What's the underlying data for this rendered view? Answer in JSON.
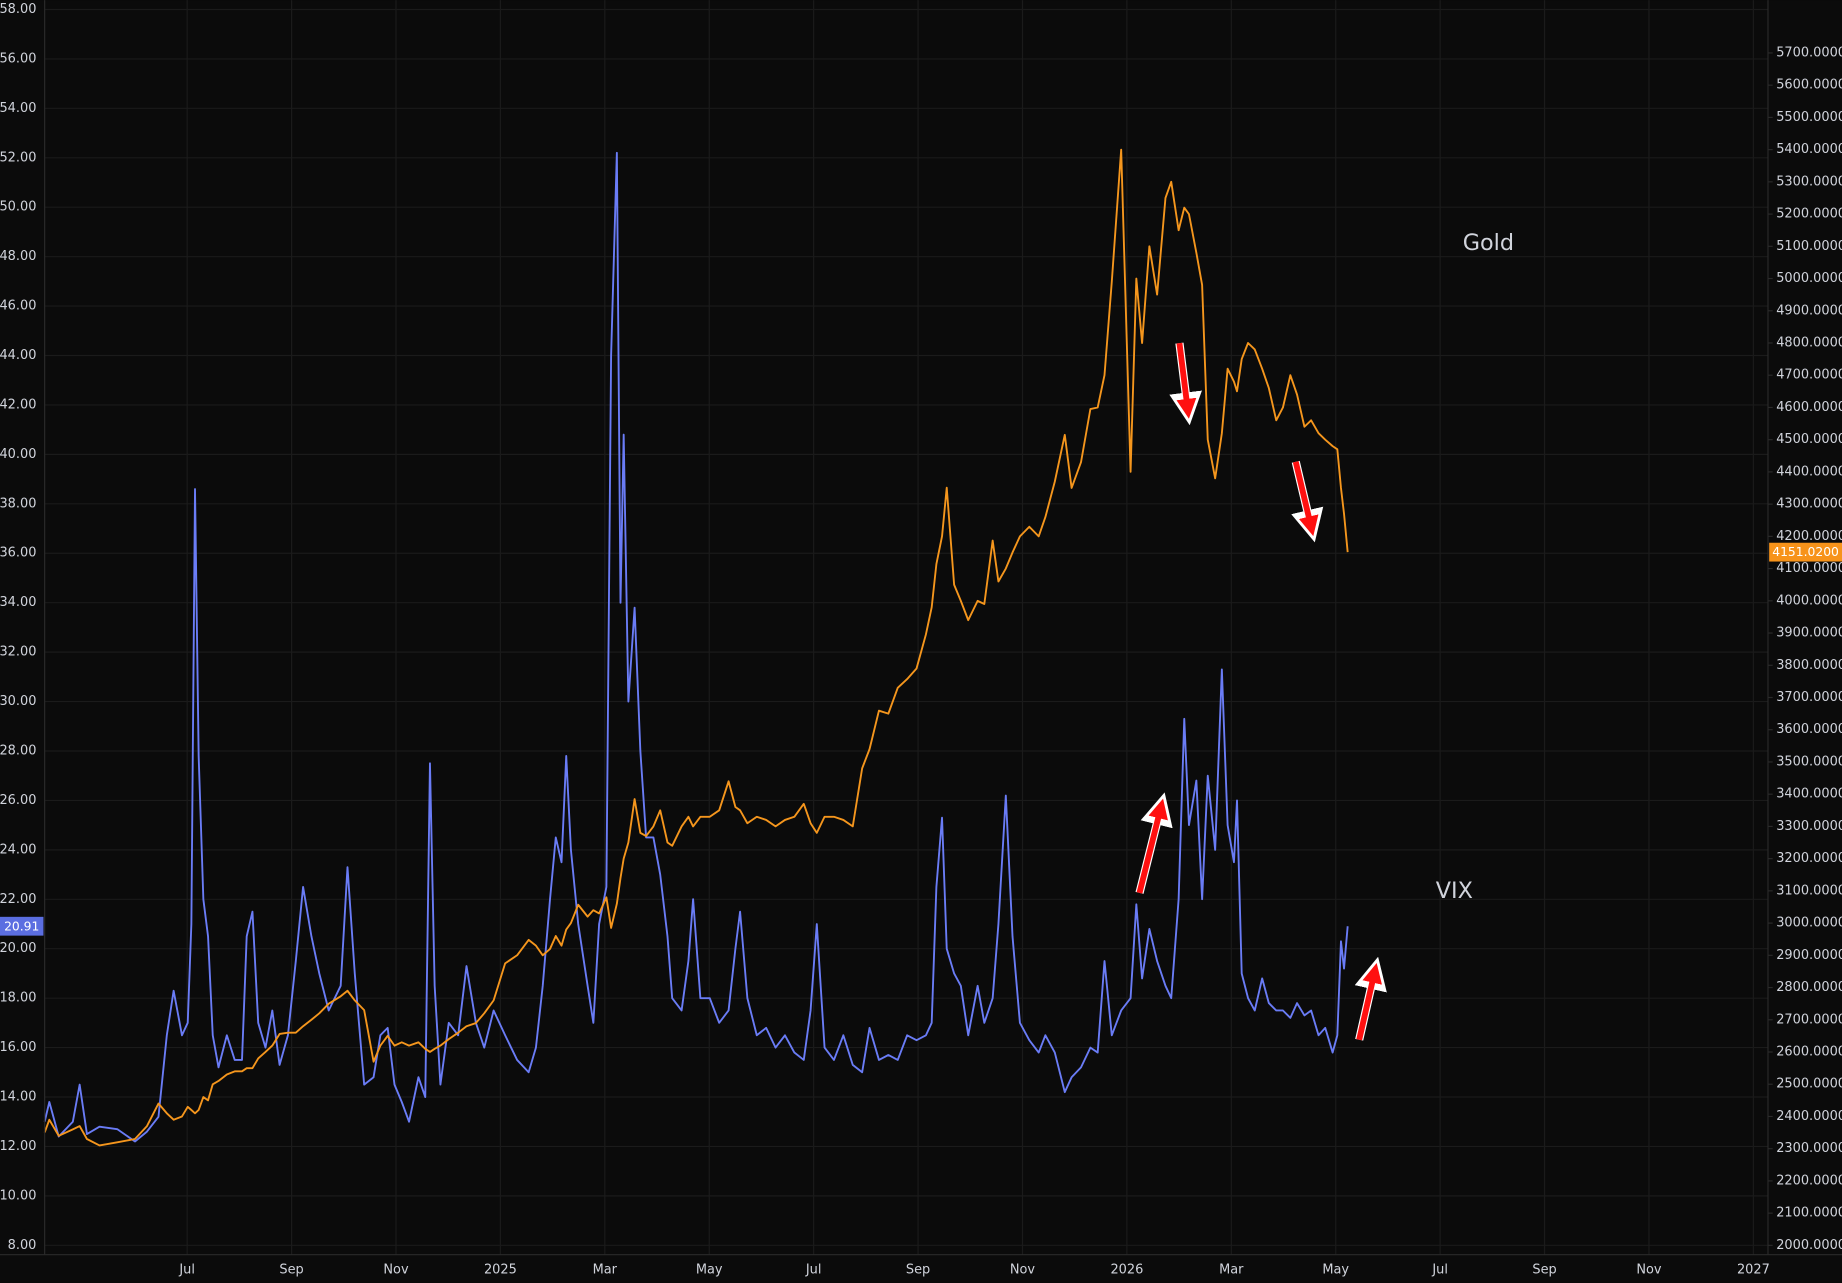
{
  "chart_data": {
    "type": "line",
    "annotations": [
      "Gold",
      "VIX"
    ],
    "x": [
      4.27,
      4.36,
      4.54,
      4.81,
      4.94,
      5.08,
      5.32,
      5.66,
      6.0,
      6.23,
      6.45,
      6.61,
      6.74,
      6.9,
      7.01,
      7.08,
      7.15,
      7.22,
      7.31,
      7.4,
      7.49,
      7.6,
      7.76,
      7.91,
      8.05,
      8.14,
      8.25,
      8.36,
      8.5,
      8.63,
      8.77,
      8.93,
      9.08,
      9.22,
      9.38,
      9.53,
      9.71,
      9.94,
      10.07,
      10.21,
      10.39,
      10.57,
      10.7,
      10.84,
      10.97,
      11.11,
      11.25,
      11.43,
      11.56,
      11.65,
      11.74,
      11.85,
      12.01,
      12.19,
      12.35,
      12.53,
      12.69,
      12.87,
      13.09,
      13.32,
      13.54,
      13.68,
      13.81,
      13.95,
      14.06,
      14.17,
      14.26,
      14.35,
      14.49,
      14.67,
      14.78,
      14.89,
      15.03,
      15.12,
      15.23,
      15.3,
      15.36,
      15.45,
      15.57,
      15.68,
      15.79,
      15.93,
      16.06,
      16.2,
      16.29,
      16.47,
      16.6,
      16.69,
      16.83,
      17.01,
      17.19,
      17.37,
      17.5,
      17.59,
      17.73,
      17.91,
      18.09,
      18.27,
      18.45,
      18.63,
      18.81,
      18.94,
      19.06,
      19.21,
      19.39,
      19.57,
      19.75,
      19.93,
      20.07,
      20.25,
      20.43,
      20.61,
      20.79,
      20.97,
      21.15,
      21.26,
      21.35,
      21.46,
      21.55,
      21.69,
      21.82,
      21.96,
      22.14,
      22.27,
      22.43,
      22.54,
      22.68,
      22.81,
      22.95,
      23.13,
      23.31,
      23.44,
      23.62,
      23.81,
      23.94,
      24.12,
      24.3,
      24.44,
      24.57,
      24.71,
      24.89,
      25.07,
      25.18,
      25.29,
      25.43,
      25.58,
      25.74,
      25.85,
      25.99,
      26.1,
      26.19,
      26.33,
      26.44,
      26.55,
      26.69,
      26.82,
      26.93,
      27.05,
      27.11,
      27.2,
      27.32,
      27.45,
      27.59,
      27.72,
      27.86,
      27.99,
      28.13,
      28.26,
      28.4,
      28.53,
      28.67,
      28.8,
      28.94,
      29.03,
      29.1,
      29.16,
      29.23
    ],
    "series": [
      {
        "name": "VIX",
        "color": "#6a7cf6",
        "axis": "y",
        "price_label": "20.91",
        "label_color": "#5b6ee1",
        "values": [
          13,
          13.8,
          12.4,
          13,
          14.5,
          12.5,
          12.8,
          12.7,
          12.2,
          12.6,
          13.2,
          16.5,
          18.3,
          16.5,
          17,
          21,
          38.6,
          27.8,
          22,
          20.5,
          16.5,
          15.2,
          16.5,
          15.5,
          15.5,
          20.5,
          21.5,
          17,
          16,
          17.5,
          15.3,
          16.5,
          19.5,
          22.5,
          20.5,
          19,
          17.5,
          18.5,
          23.3,
          19,
          14.5,
          14.8,
          16.5,
          16.8,
          14.5,
          13.8,
          13,
          14.8,
          14,
          27.5,
          18.5,
          14.5,
          17,
          16.5,
          19.3,
          17,
          16,
          17.5,
          16.5,
          15.5,
          15,
          16,
          18.5,
          22,
          24.5,
          23.5,
          27.8,
          24,
          21,
          18.5,
          17,
          21,
          22.5,
          44,
          52.2,
          34,
          40.8,
          30,
          33.8,
          28,
          24.5,
          24.5,
          23,
          20.5,
          18,
          17.5,
          19.5,
          22,
          18,
          18,
          17,
          17.5,
          20,
          21.5,
          18,
          16.5,
          16.8,
          16,
          16.5,
          15.8,
          15.5,
          17.5,
          21,
          16,
          15.5,
          16.5,
          15.3,
          15,
          16.8,
          15.5,
          15.7,
          15.5,
          16.5,
          16.3,
          16.5,
          17,
          22.5,
          25.3,
          20,
          19,
          18.5,
          16.5,
          18.5,
          17,
          18,
          21,
          26.2,
          20.5,
          17,
          16.3,
          15.8,
          16.5,
          15.8,
          14.2,
          14.8,
          15.2,
          16,
          15.8,
          19.5,
          16.5,
          17.5,
          18,
          21.8,
          18.8,
          20.8,
          19.5,
          18.5,
          18,
          22,
          29.3,
          25,
          26.8,
          22,
          27,
          24,
          31.3,
          25,
          23.5,
          26,
          19,
          18,
          17.5,
          18.8,
          17.8,
          17.5,
          17.5,
          17.2,
          17.8,
          17.3,
          17.5,
          16.5,
          16.8,
          15.8,
          16.5,
          20.3,
          19.2,
          20.91
        ]
      },
      {
        "name": "Gold",
        "color": "#f5961d",
        "axis": "y2",
        "price_label": "4151.0200",
        "label_color": "#f7931a",
        "values": [
          2350,
          2390,
          2340,
          2360,
          2370,
          2330,
          2310,
          2320,
          2330,
          2370,
          2440,
          2410,
          2390,
          2400,
          2430,
          2420,
          2410,
          2420,
          2460,
          2450,
          2500,
          2510,
          2530,
          2540,
          2540,
          2550,
          2550,
          2580,
          2600,
          2620,
          2656,
          2660,
          2660,
          2680,
          2700,
          2720,
          2750,
          2773,
          2790,
          2760,
          2730,
          2570,
          2620,
          2650,
          2620,
          2630,
          2620,
          2630,
          2610,
          2600,
          2610,
          2620,
          2640,
          2660,
          2680,
          2690,
          2720,
          2760,
          2875,
          2900,
          2948,
          2930,
          2900,
          2920,
          2960,
          2930,
          2980,
          3000,
          3057,
          3020,
          3040,
          3030,
          3080,
          2985,
          3060,
          3140,
          3200,
          3250,
          3385,
          3280,
          3270,
          3300,
          3350,
          3250,
          3240,
          3300,
          3330,
          3300,
          3330,
          3330,
          3350,
          3440,
          3360,
          3350,
          3310,
          3330,
          3320,
          3300,
          3320,
          3330,
          3370,
          3310,
          3280,
          3330,
          3330,
          3320,
          3300,
          3480,
          3540,
          3659,
          3650,
          3730,
          3757,
          3790,
          3896,
          3980,
          4114,
          4200,
          4351,
          4050,
          4000,
          3940,
          4000,
          3990,
          4187,
          4060,
          4100,
          4150,
          4200,
          4230,
          4200,
          4260,
          4370,
          4515,
          4350,
          4430,
          4595,
          4600,
          4700,
          4990,
          5400,
          4400,
          5000,
          4800,
          5100,
          4950,
          5250,
          5300,
          5150,
          5220,
          5200,
          5080,
          4980,
          4500,
          4380,
          4520,
          4720,
          4680,
          4650,
          4750,
          4800,
          4780,
          4720,
          4660,
          4560,
          4600,
          4700,
          4640,
          4540,
          4560,
          4520,
          4500,
          4480,
          4470,
          4350,
          4270,
          4151.02
        ]
      }
    ],
    "xlim": [
      4.27,
      37.28
    ],
    "xticks": [
      {
        "value": 7,
        "label": "Jul"
      },
      {
        "value": 9,
        "label": "Sep"
      },
      {
        "value": 11,
        "label": "Nov"
      },
      {
        "value": 13,
        "label": "2025"
      },
      {
        "value": 15,
        "label": "Mar"
      },
      {
        "value": 17,
        "label": "May"
      },
      {
        "value": 19,
        "label": "Jul"
      },
      {
        "value": 21,
        "label": "Sep"
      },
      {
        "value": 23,
        "label": "Nov"
      },
      {
        "value": 25,
        "label": "2026"
      },
      {
        "value": 27,
        "label": "Mar"
      },
      {
        "value": 29,
        "label": "May"
      },
      {
        "value": 31,
        "label": "Jul"
      },
      {
        "value": 33,
        "label": "Sep"
      },
      {
        "value": 35,
        "label": "Nov"
      },
      {
        "value": 37,
        "label": "2027"
      }
    ],
    "ylim": [
      7.62,
      58.38
    ],
    "yticks": [
      {
        "value": 8,
        "label": "8.00"
      },
      {
        "value": 10,
        "label": "10.00"
      },
      {
        "value": 12,
        "label": "12.00"
      },
      {
        "value": 14,
        "label": "14.00"
      },
      {
        "value": 16,
        "label": "16.00"
      },
      {
        "value": 18,
        "label": "18.00"
      },
      {
        "value": 20,
        "label": "20.00"
      },
      {
        "value": 22,
        "label": "22.00"
      },
      {
        "value": 24,
        "label": "24.00"
      },
      {
        "value": 26,
        "label": "26.00"
      },
      {
        "value": 28,
        "label": "28.00"
      },
      {
        "value": 30,
        "label": "30.00"
      },
      {
        "value": 32,
        "label": "32.00"
      },
      {
        "value": 34,
        "label": "34.00"
      },
      {
        "value": 36,
        "label": "36.00"
      },
      {
        "value": 38,
        "label": "38.00"
      },
      {
        "value": 40,
        "label": "40.00"
      },
      {
        "value": 42,
        "label": "42.00"
      },
      {
        "value": 44,
        "label": "44.00"
      },
      {
        "value": 46,
        "label": "46.00"
      },
      {
        "value": 48,
        "label": "48.00"
      },
      {
        "value": 50,
        "label": "50.00"
      },
      {
        "value": 52,
        "label": "52.00"
      },
      {
        "value": 54,
        "label": "54.00"
      },
      {
        "value": 56,
        "label": "56.00"
      },
      {
        "value": 58,
        "label": "58.00"
      }
    ],
    "y2lim": [
      1971,
      5864
    ],
    "y2ticks": [
      {
        "value": 2000,
        "label": "2000.0000"
      },
      {
        "value": 2100,
        "label": "2100.0000"
      },
      {
        "value": 2200,
        "label": "2200.0000"
      },
      {
        "value": 2300,
        "label": "2300.0000"
      },
      {
        "value": 2400,
        "label": "2400.0000"
      },
      {
        "value": 2500,
        "label": "2500.0000"
      },
      {
        "value": 2600,
        "label": "2600.0000"
      },
      {
        "value": 2700,
        "label": "2700.0000"
      },
      {
        "value": 2800,
        "label": "2800.0000"
      },
      {
        "value": 2900,
        "label": "2900.0000"
      },
      {
        "value": 3000,
        "label": "3000.0000"
      },
      {
        "value": 3100,
        "label": "3100.0000"
      },
      {
        "value": 3200,
        "label": "3200.0000"
      },
      {
        "value": 3300,
        "label": "3300.0000"
      },
      {
        "value": 3400,
        "label": "3400.0000"
      },
      {
        "value": 3500,
        "label": "3500.0000"
      },
      {
        "value": 3600,
        "label": "3600.0000"
      },
      {
        "value": 3700,
        "label": "3700.0000"
      },
      {
        "value": 3800,
        "label": "3800.0000"
      },
      {
        "value": 3900,
        "label": "3900.0000"
      },
      {
        "value": 4000,
        "label": "4000.0000"
      },
      {
        "value": 4100,
        "label": "4100.0000"
      },
      {
        "value": 4200,
        "label": "4200.0000"
      },
      {
        "value": 4300,
        "label": "4300.0000"
      },
      {
        "value": 4400,
        "label": "4400.0000"
      },
      {
        "value": 4500,
        "label": "4500.0000"
      },
      {
        "value": 4600,
        "label": "4600.0000"
      },
      {
        "value": 4700,
        "label": "4700.0000"
      },
      {
        "value": 4800,
        "label": "4800.0000"
      },
      {
        "value": 4900,
        "label": "4900.0000"
      },
      {
        "value": 5000,
        "label": "5000.0000"
      },
      {
        "value": 5100,
        "label": "5100.0000"
      },
      {
        "value": 5200,
        "label": "5200.0000"
      },
      {
        "value": 5300,
        "label": "5300.0000"
      },
      {
        "value": 5400,
        "label": "5400.0000"
      },
      {
        "value": 5500,
        "label": "5500.0000"
      },
      {
        "value": 5600,
        "label": "5600.0000"
      },
      {
        "value": 5700,
        "label": "5700.0000"
      }
    ],
    "grid": true,
    "annotation_color": "#f5961d"
  }
}
